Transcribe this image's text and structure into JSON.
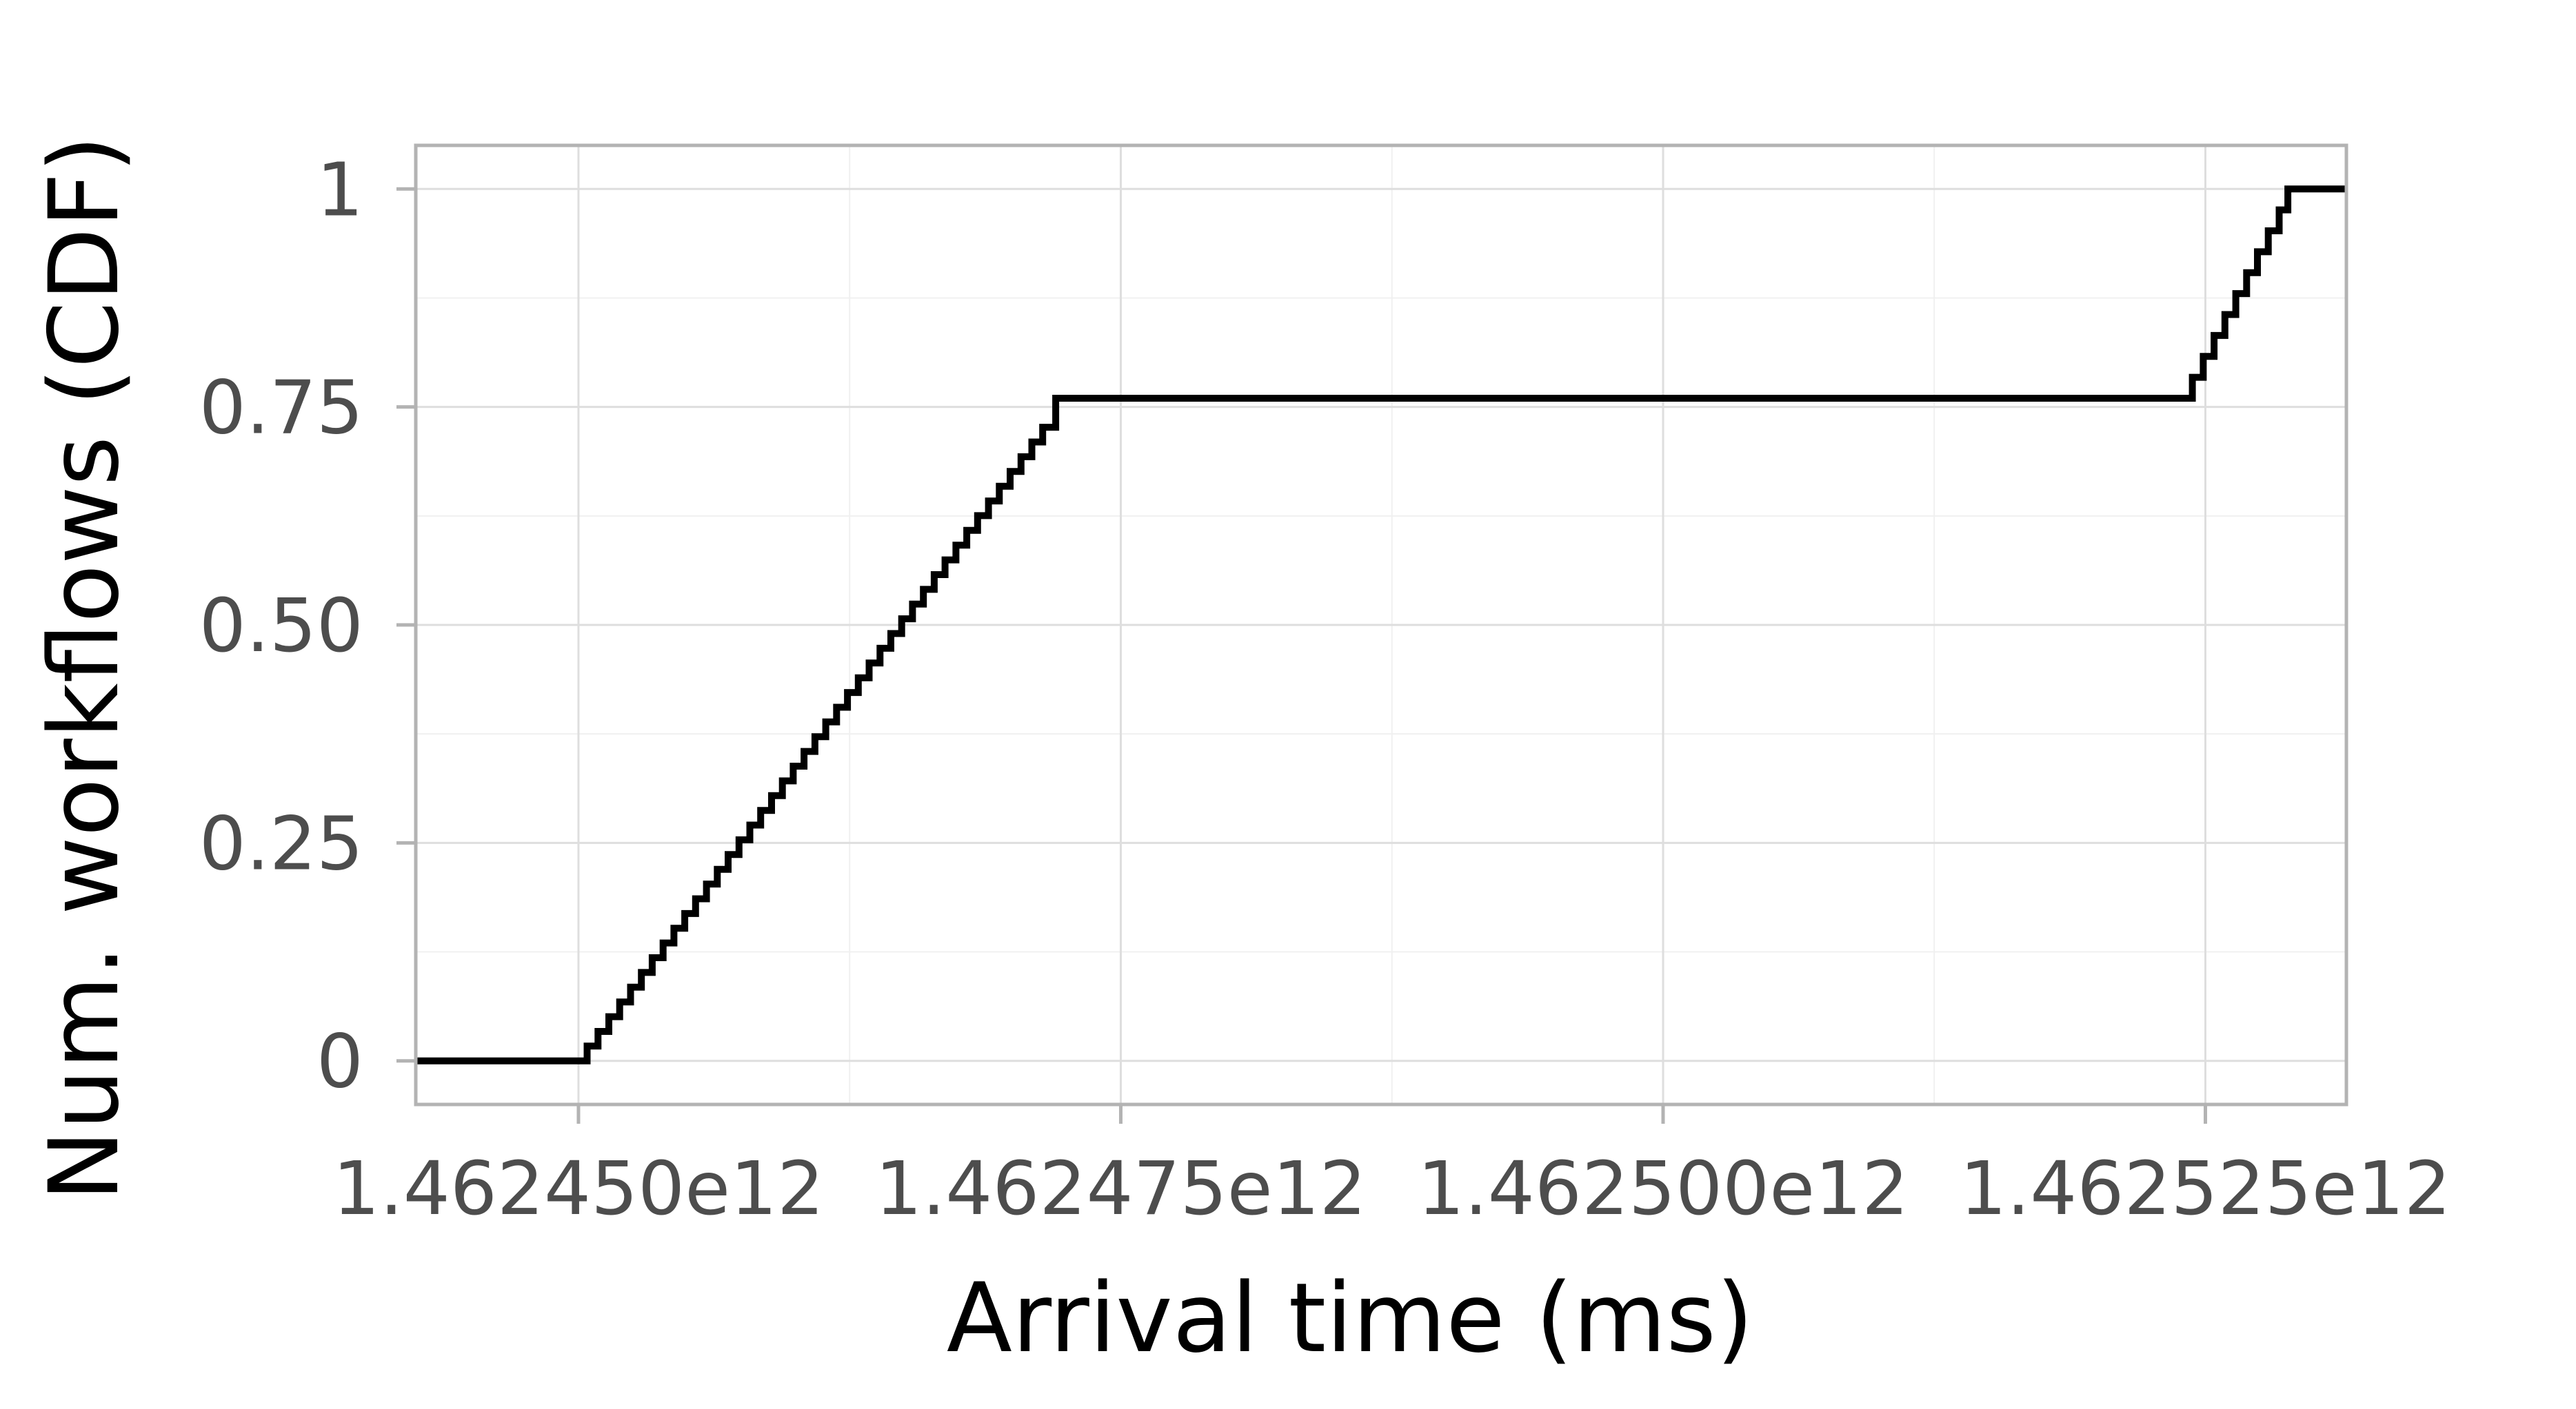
{
  "chart_data": {
    "type": "line",
    "step": true,
    "title": "",
    "xlabel": "Arrival time (ms)",
    "ylabel": "Num. workflows (CDF)",
    "xlim": [
      1462442500000,
      1462531500000
    ],
    "ylim": [
      -0.05,
      1.05
    ],
    "x_ticks": [
      1462450000000,
      1462475000000,
      1462500000000,
      1462525000000
    ],
    "x_tick_labels": [
      "1.462450e12",
      "1.462475e12",
      "1.462500e12",
      "1.462525e12"
    ],
    "x_minor_ticks": [
      1462462500000,
      1462487500000,
      1462512500000
    ],
    "y_ticks": [
      0,
      0.25,
      0.5,
      0.75,
      1
    ],
    "y_tick_labels": [
      "0",
      "0.25",
      "0.50",
      "0.75",
      "1"
    ],
    "y_minor_ticks": [
      0.125,
      0.375,
      0.625,
      0.875
    ],
    "grid": true,
    "legend": "none",
    "colors": {
      "line": "#000000",
      "panel_border": "#b3b3b3",
      "grid_major": "#dedede",
      "grid_minor": "#f0f0f0",
      "background": "#ffffff"
    },
    "series": [
      {
        "x": [
          1462442500000,
          1462450000000,
          1462450400000,
          1462450900000,
          1462451400000,
          1462451900000,
          1462452400000,
          1462452900000,
          1462453400000,
          1462453900000,
          1462454400000,
          1462454900000,
          1462455400000,
          1462455900000,
          1462456400000,
          1462456900000,
          1462457400000,
          1462457900000,
          1462458400000,
          1462458900000,
          1462459400000,
          1462459900000,
          1462460400000,
          1462460900000,
          1462461400000,
          1462461900000,
          1462462400000,
          1462462900000,
          1462463400000,
          1462463900000,
          1462464400000,
          1462464900000,
          1462465400000,
          1462465900000,
          1462466400000,
          1462466900000,
          1462467400000,
          1462467900000,
          1462468400000,
          1462468900000,
          1462469400000,
          1462469900000,
          1462470400000,
          1462470900000,
          1462471400000,
          1462472000000,
          1462524000000,
          1462524400000,
          1462524900000,
          1462525400000,
          1462525900000,
          1462526400000,
          1462526900000,
          1462527400000,
          1462527900000,
          1462528400000,
          1462528800000,
          1462531500000
        ],
        "y": [
          0,
          0,
          0.0169,
          0.0338,
          0.0507,
          0.0676,
          0.0845,
          0.1014,
          0.1183,
          0.1352,
          0.1521,
          0.169,
          0.1859,
          0.2028,
          0.2197,
          0.2366,
          0.2535,
          0.2704,
          0.2873,
          0.3042,
          0.3211,
          0.338,
          0.3549,
          0.3718,
          0.3887,
          0.4056,
          0.4225,
          0.4394,
          0.4563,
          0.4732,
          0.4901,
          0.507,
          0.5239,
          0.5408,
          0.5577,
          0.5746,
          0.5915,
          0.6084,
          0.6253,
          0.6422,
          0.6591,
          0.676,
          0.6929,
          0.7098,
          0.7267,
          0.76,
          0.76,
          0.784,
          0.808,
          0.832,
          0.856,
          0.88,
          0.904,
          0.928,
          0.952,
          0.976,
          1,
          1
        ]
      }
    ]
  }
}
